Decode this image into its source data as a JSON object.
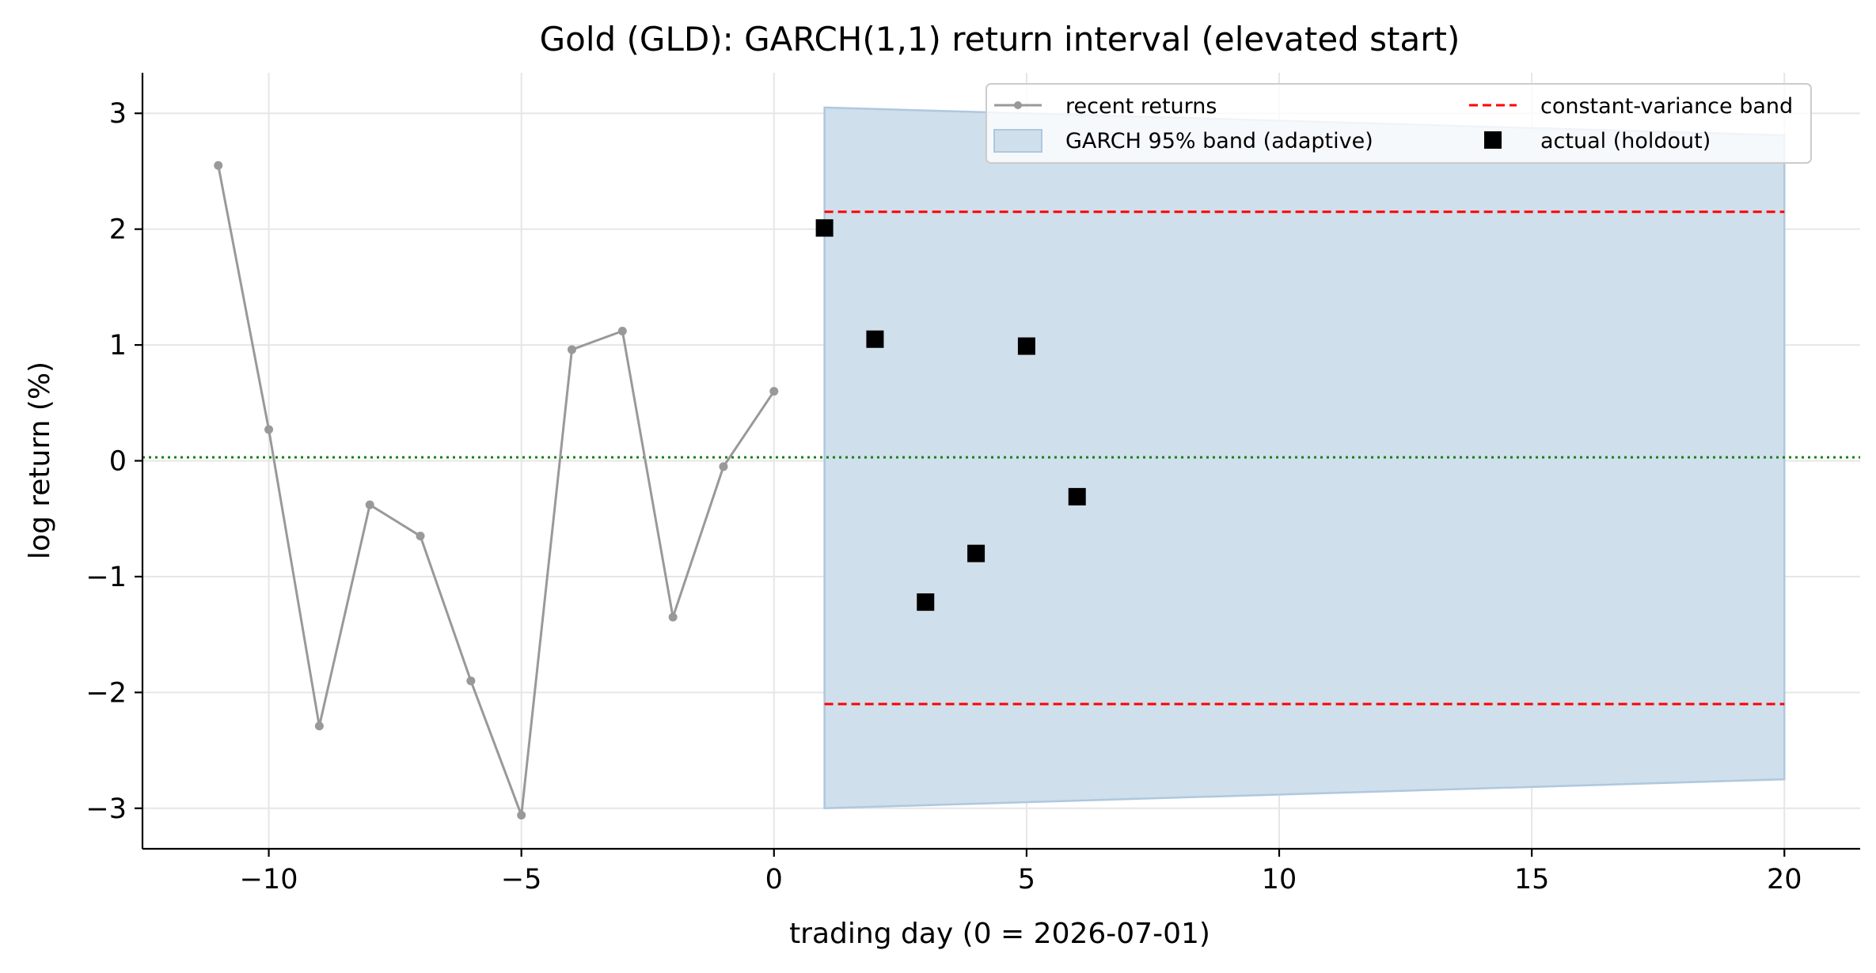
{
  "chart_data": {
    "type": "line",
    "title": "Gold (GLD): GARCH(1,1) return interval (elevated start)",
    "xlabel": "trading day (0 = 2026-07-01)",
    "ylabel": "log return (%)",
    "xlim": [
      -12.5,
      21.5
    ],
    "ylim": [
      -3.35,
      3.35
    ],
    "xticks": [
      -10,
      -5,
      0,
      5,
      10,
      15,
      20
    ],
    "xtick_labels": [
      "−10",
      "−5",
      "0",
      "5",
      "10",
      "15",
      "20"
    ],
    "yticks": [
      3,
      2,
      1,
      0,
      -1,
      -2,
      -3
    ],
    "ytick_labels": [
      "3",
      "2",
      "1",
      "0",
      "−1",
      "−2",
      "−3"
    ],
    "grid": true,
    "legend_position": "top-right",
    "legend": {
      "recent": "recent returns",
      "garch": "GARCH 95% band (adaptive)",
      "constant": "constant-variance band",
      "actual": "actual (holdout)"
    },
    "colors": {
      "recent": "#999999",
      "garch_fill": "#cfdfeb",
      "garch_edge": "#aec8df",
      "constant": "#ff0000",
      "actual": "#000000",
      "mean": "#1a7f1a",
      "grid": "#e6e6e6"
    },
    "series": [
      {
        "name": "recent returns",
        "x": [
          -11,
          -10,
          -9,
          -8,
          -7,
          -6,
          -5,
          -4,
          -3,
          -2,
          -1,
          0
        ],
        "y": [
          2.55,
          0.27,
          -2.29,
          -0.38,
          -0.65,
          -1.9,
          -3.06,
          0.96,
          1.12,
          -1.35,
          -0.05,
          0.6
        ]
      },
      {
        "name": "GARCH 95% band (adaptive)",
        "x": [
          1,
          20
        ],
        "upper": [
          3.05,
          2.81
        ],
        "lower": [
          -3.0,
          -2.75
        ]
      },
      {
        "name": "constant-variance band",
        "x": [
          1,
          20
        ],
        "upper": 2.15,
        "lower": -2.1
      },
      {
        "name": "actual (holdout)",
        "x": [
          1,
          2,
          3,
          4,
          5,
          6
        ],
        "y": [
          2.01,
          1.05,
          -1.22,
          -0.8,
          0.99,
          -0.31
        ]
      }
    ],
    "mean_line": 0.03
  }
}
